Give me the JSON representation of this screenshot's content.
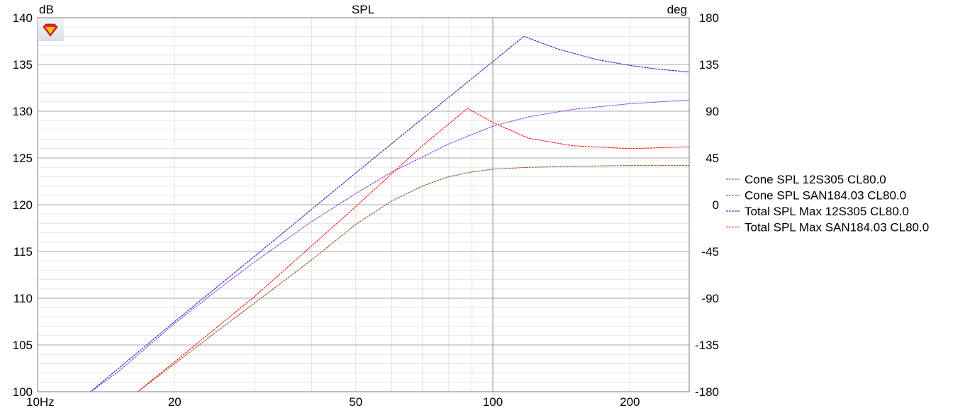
{
  "chart_data": {
    "type": "line",
    "title": "SPL",
    "y_left_unit": "dB",
    "y_right_unit": "deg",
    "x_scale": "log",
    "xlim": [
      10,
      270
    ],
    "ylim": [
      100,
      140
    ],
    "y_right_lim": [
      -180,
      180
    ],
    "grid": true,
    "legend_position": "right",
    "x_ticks": [
      {
        "value": 10,
        "label": "10Hz"
      },
      {
        "value": 20,
        "label": "20"
      },
      {
        "value": 50,
        "label": "50"
      },
      {
        "value": 100,
        "label": "100"
      },
      {
        "value": 200,
        "label": "200"
      }
    ],
    "y_ticks": [
      {
        "value": 140,
        "label": "140"
      },
      {
        "value": 135,
        "label": "135"
      },
      {
        "value": 130,
        "label": "130"
      },
      {
        "value": 125,
        "label": "125"
      },
      {
        "value": 120,
        "label": "120"
      },
      {
        "value": 115,
        "label": "115"
      },
      {
        "value": 110,
        "label": "110"
      },
      {
        "value": 105,
        "label": "105"
      },
      {
        "value": 100,
        "label": "100"
      }
    ],
    "y_right_ticks": [
      "180",
      "135",
      "90",
      "45",
      "0",
      "-45",
      "-90",
      "-135",
      "-180"
    ],
    "series": [
      {
        "name": "Cone SPL 12S305 CL80.0",
        "color": "#8a2be2",
        "x": [
          13,
          15,
          20,
          25,
          30,
          40,
          50,
          60,
          70,
          80,
          90,
          100,
          120,
          150,
          200,
          270
        ],
        "y": [
          99.9,
          102.1,
          107.3,
          111.0,
          113.9,
          118.2,
          121.2,
          123.5,
          125.1,
          126.5,
          127.5,
          128.4,
          129.4,
          130.2,
          130.8,
          131.2
        ]
      },
      {
        "name": "Cone SPL SAN184.03 CL80.0",
        "color": "#8b4513",
        "x": [
          16.5,
          20,
          25,
          30,
          40,
          50,
          60,
          70,
          80,
          90,
          100,
          120,
          150,
          200,
          270
        ],
        "y": [
          99.9,
          103.0,
          106.6,
          109.5,
          114.1,
          117.9,
          120.4,
          122.0,
          123.0,
          123.5,
          123.8,
          124.0,
          124.1,
          124.2,
          124.2
        ]
      },
      {
        "name": "Total SPL Max 12S305 CL80.0",
        "color": "#1010c0",
        "x": [
          13,
          20,
          30,
          50,
          70,
          100,
          117,
          140,
          170,
          200,
          230,
          270
        ],
        "y": [
          99.9,
          107.5,
          114.5,
          123.4,
          129.2,
          135.3,
          138.0,
          136.6,
          135.5,
          134.9,
          134.5,
          134.2
        ]
      },
      {
        "name": "Total SPL Max SAN184.03 CL80.0",
        "color": "#ff0000",
        "x": [
          16.5,
          20,
          30,
          50,
          70,
          88,
          100,
          120,
          150,
          200,
          270
        ],
        "y": [
          99.9,
          103.2,
          110.2,
          119.8,
          126.3,
          130.3,
          128.8,
          127.1,
          126.3,
          126.0,
          126.2
        ]
      }
    ]
  }
}
